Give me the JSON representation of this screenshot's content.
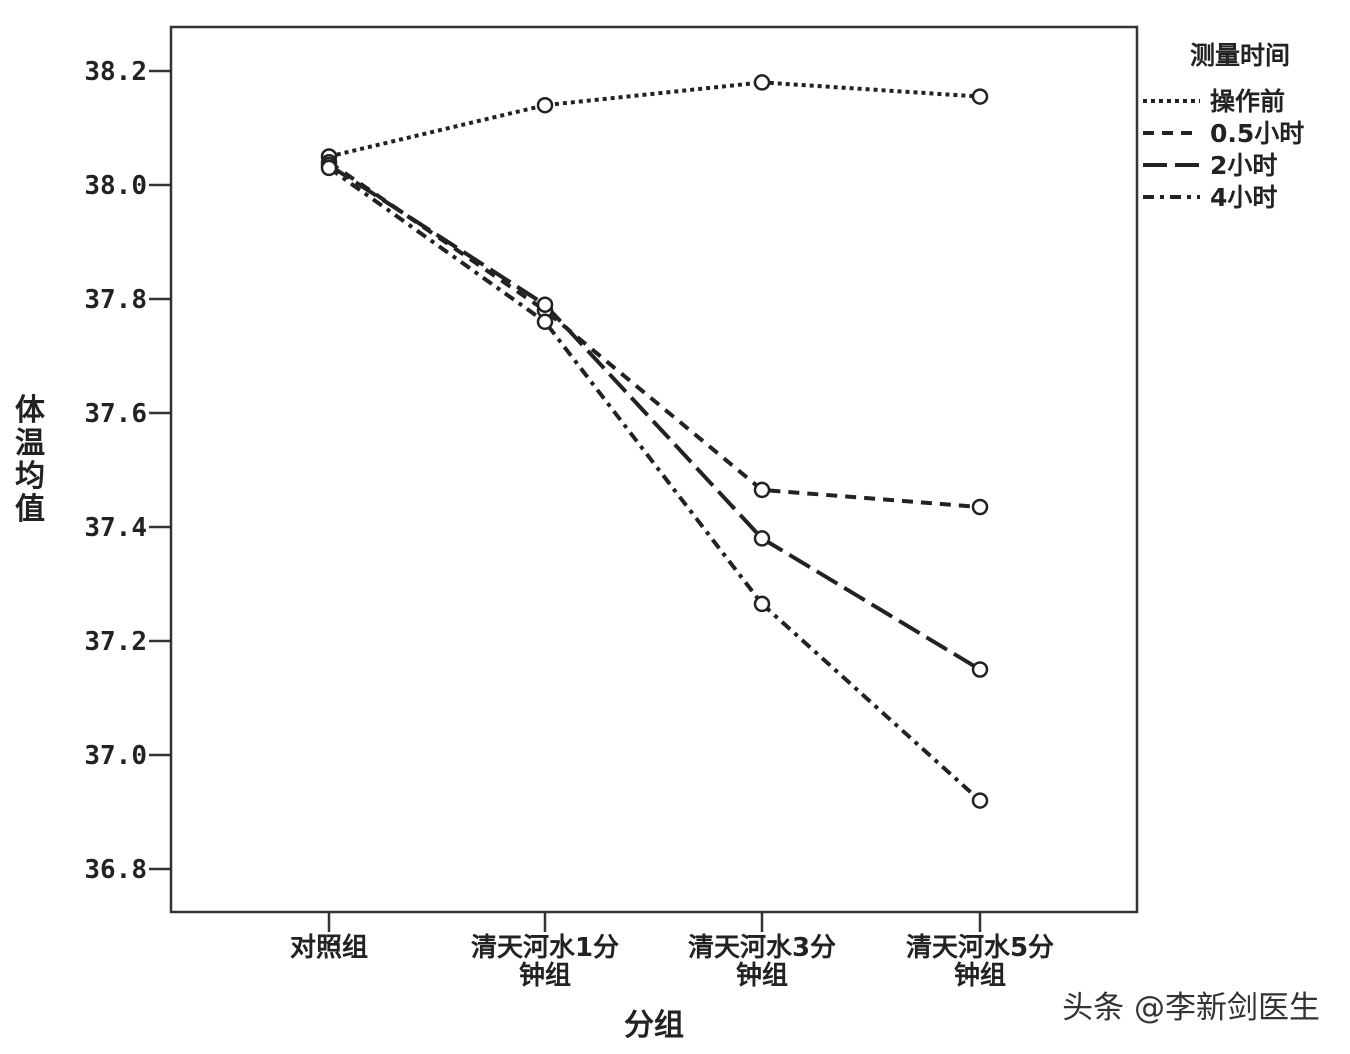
{
  "chart_data": {
    "type": "line",
    "xlabel": "分组",
    "ylabel": "体温均值",
    "categories": [
      [
        "对照组"
      ],
      [
        "清天河水1分",
        "钟组"
      ],
      [
        "清天河水3分",
        "钟组"
      ],
      [
        "清天河水5分",
        "钟组"
      ]
    ],
    "ylim": [
      36.75,
      38.3
    ],
    "yticks": [
      36.8,
      37.0,
      37.2,
      37.4,
      37.6,
      37.8,
      38.0,
      38.2
    ],
    "ytick_labels": [
      "36.8",
      "37.0",
      "37.2",
      "37.4",
      "37.6",
      "37.8",
      "38.0",
      "38.2"
    ],
    "grid": false,
    "legend": {
      "title": "测量时间",
      "position": "top-right"
    },
    "series": [
      {
        "name": "操作前",
        "dash": "dotted",
        "values": [
          38.05,
          38.14,
          38.18,
          38.155
        ]
      },
      {
        "name": "0.5小时",
        "dash": "dashed",
        "values": [
          38.04,
          37.78,
          37.465,
          37.435
        ]
      },
      {
        "name": "2小时",
        "dash": "long-dash",
        "values": [
          38.035,
          37.79,
          37.38,
          37.15
        ]
      },
      {
        "name": "4小时",
        "dash": "dash-dot",
        "values": [
          38.03,
          37.76,
          37.265,
          36.92
        ]
      }
    ],
    "line_color": "#222222"
  },
  "watermark": "头条 @李新剑医生"
}
